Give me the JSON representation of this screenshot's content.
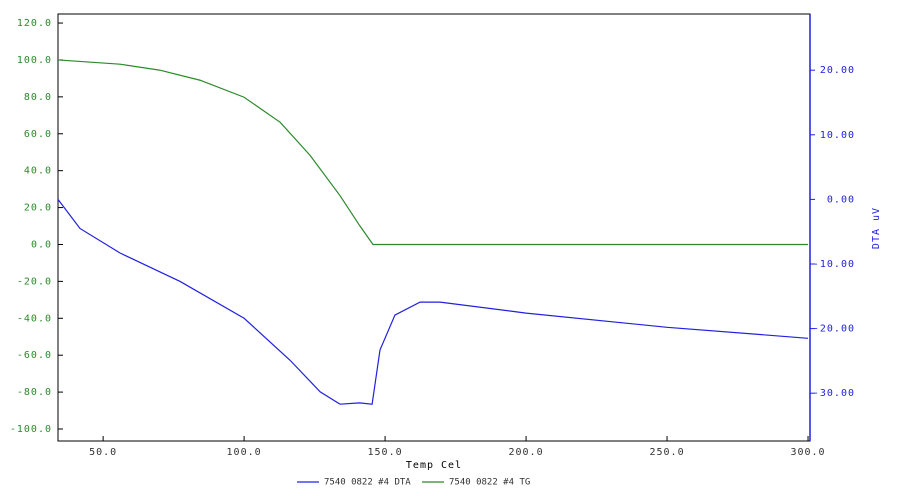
{
  "chart_data": {
    "type": "line",
    "x_label": "Temp Cel",
    "y2_label": "DTA uV",
    "xlim": [
      34,
      300.7
    ],
    "ylim": [
      -106.5,
      124.9
    ],
    "y2lim": [
      -37.4,
      28.7
    ],
    "xticks": [
      {
        "value": 50,
        "label": "50.0"
      },
      {
        "value": 100,
        "label": "100.0"
      },
      {
        "value": 150,
        "label": "150.0"
      },
      {
        "value": 200,
        "label": "200.0"
      },
      {
        "value": 250,
        "label": "250.0"
      },
      {
        "value": 300,
        "label": "300.0"
      }
    ],
    "yticks": [
      {
        "value": -100,
        "label": "-100.0"
      },
      {
        "value": -80,
        "label": "-80.0"
      },
      {
        "value": -60,
        "label": "-60.0"
      },
      {
        "value": -40,
        "label": "-40.0"
      },
      {
        "value": -20,
        "label": "-20.0"
      },
      {
        "value": 0,
        "label": "0.0"
      },
      {
        "value": 20,
        "label": "20.0"
      },
      {
        "value": 40,
        "label": "40.0"
      },
      {
        "value": 60,
        "label": "60.0"
      },
      {
        "value": 80,
        "label": "80.0"
      },
      {
        "value": 100,
        "label": "100.0"
      },
      {
        "value": 120,
        "label": "120.0"
      }
    ],
    "y2ticks": [
      {
        "value": -30,
        "label": "-30.00"
      },
      {
        "value": -20,
        "label": "-20.00"
      },
      {
        "value": -10,
        "label": "-10.00"
      },
      {
        "value": 0,
        "label": "0.00"
      },
      {
        "value": 10,
        "label": "10.00"
      },
      {
        "value": 20,
        "label": "20.00"
      }
    ],
    "series": [
      {
        "name": "7540 0822 #4 DTA",
        "color": "#2020e0",
        "axis": "y2",
        "x": [
          34,
          41.8,
          56,
          77.3,
          100,
          116.3,
          127,
          134,
          141,
          145.4,
          148.2,
          153.5,
          162.4,
          169.5,
          200,
          250,
          300
        ],
        "values": [
          0,
          -4.5,
          -8.3,
          -12.7,
          -18.4,
          -24.9,
          -29.8,
          -31.7,
          -31.5,
          -31.7,
          -23.3,
          -17.9,
          -15.9,
          -15.9,
          -17.6,
          -19.8,
          -21.5
        ]
      },
      {
        "name": "7540 0822 #4 TG",
        "color": "#2a8a2a",
        "axis": "y",
        "x": [
          34,
          56,
          70,
          84.4,
          100,
          112.8,
          123.4,
          134,
          141,
          145.7,
          200,
          250,
          300
        ],
        "values": [
          100,
          97.7,
          94.5,
          89,
          79.8,
          66.2,
          48.3,
          26.5,
          10.2,
          0,
          0,
          0,
          0
        ]
      }
    ]
  }
}
